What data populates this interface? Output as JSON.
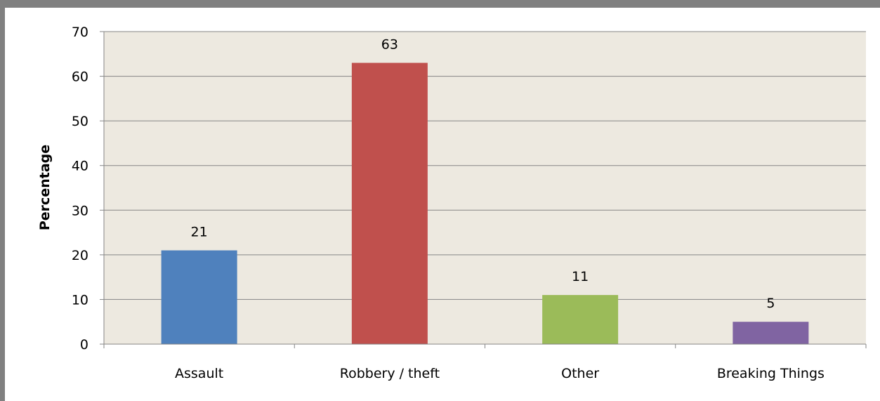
{
  "chart_data": {
    "type": "bar",
    "categories": [
      "Assault",
      "Robbery / theft",
      "Other",
      "Breaking Things"
    ],
    "values": [
      21,
      63,
      11,
      5
    ],
    "data_labels": [
      "21",
      "63",
      "11",
      "5"
    ],
    "bar_colors": [
      "#4f81bd",
      "#c0504d",
      "#9bbb59",
      "#8064a2"
    ],
    "ylabel": "Percentage",
    "ylim": [
      0,
      70
    ],
    "y_ticks": [
      0,
      10,
      20,
      30,
      40,
      50,
      60,
      70
    ],
    "grid": true,
    "plot_background": "#ede9e0",
    "legend": "none"
  }
}
